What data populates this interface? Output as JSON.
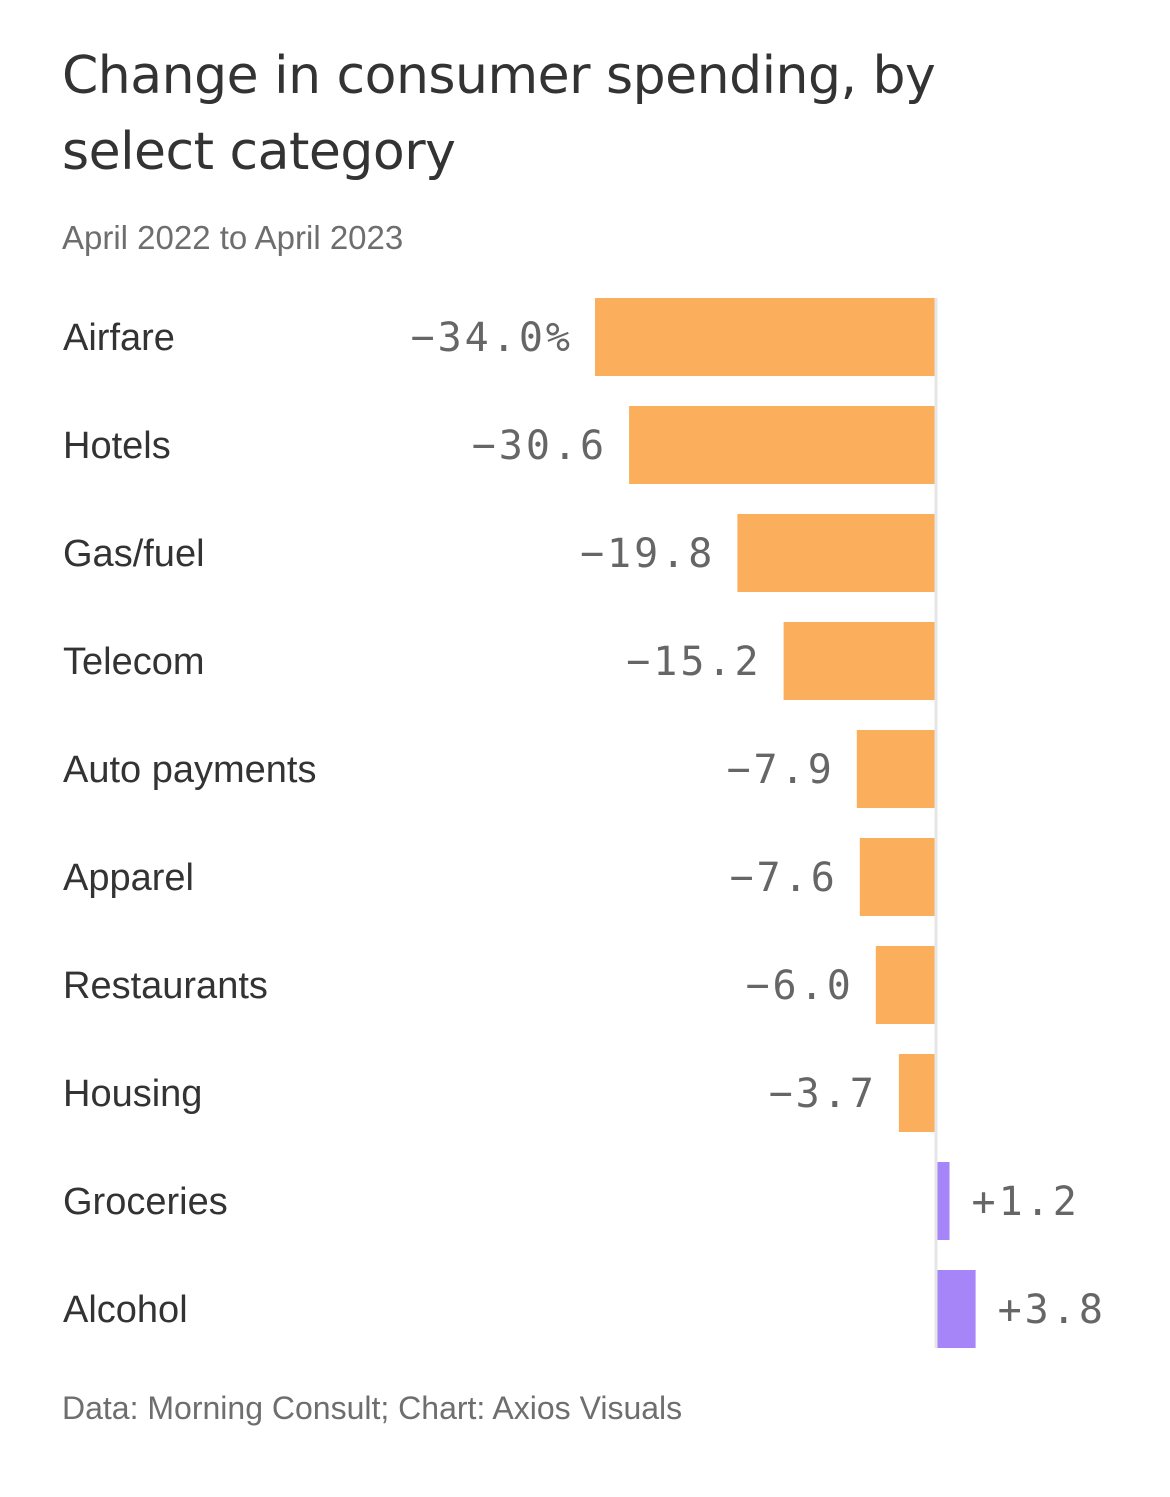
{
  "chart_data": {
    "type": "bar",
    "orientation": "horizontal",
    "title": "Change in consumer spending, by select category",
    "subtitle": "April 2022 to April 2023",
    "source": "Data: Morning Consult; Chart: Axios Visuals",
    "categories": [
      "Airfare",
      "Hotels",
      "Gas/fuel",
      "Telecom",
      "Auto payments",
      "Apparel",
      "Restaurants",
      "Housing",
      "Groceries",
      "Alcohol"
    ],
    "values": [
      -34.0,
      -30.6,
      -19.8,
      -15.2,
      -7.9,
      -7.6,
      -6.0,
      -3.7,
      1.2,
      3.8
    ],
    "value_labels": [
      "−34.0%",
      "−30.6",
      "−19.8",
      "−15.2",
      "−7.9",
      "−7.6",
      "−6.0",
      "−3.7",
      "+1.2",
      "+3.8"
    ],
    "xlim": [
      -34.0,
      3.8
    ],
    "grid": false,
    "colors": {
      "negative": "#fbaf5d",
      "positive": "#a585f7",
      "zero_line": "#e6e6e6"
    }
  }
}
